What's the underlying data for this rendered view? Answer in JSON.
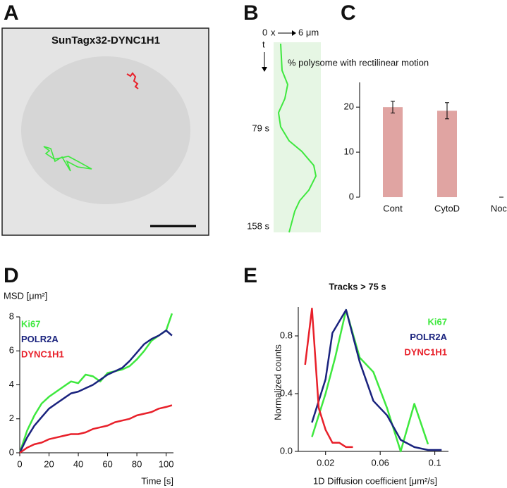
{
  "panels": {
    "A": {
      "letter": "A",
      "title": "SunTagx32-DYNC1H1"
    },
    "B": {
      "letter": "B",
      "x_start": "0",
      "x_axis": "x",
      "x_end": "6 μm",
      "t_axis": "t",
      "t_mid": "79 s",
      "t_end": "158 s"
    }
  },
  "chart_data": [
    {
      "type": "bar",
      "panel": "C",
      "title": "% polysome with rectilinear motion",
      "categories": [
        "Cont",
        "CytoD",
        "Noco"
      ],
      "values": [
        20,
        19.2,
        0
      ],
      "errors": [
        1.3,
        1.8,
        0
      ],
      "color": "#e0a4a2",
      "ylim": [
        0,
        25.5
      ],
      "yticks": [
        0,
        10,
        20
      ]
    },
    {
      "type": "line",
      "panel": "D",
      "y_label": "MSD [μm²]",
      "x_label": "Time [s]",
      "legend": "upper left",
      "x": [
        0,
        5,
        10,
        15,
        20,
        25,
        30,
        35,
        40,
        45,
        50,
        55,
        60,
        65,
        70,
        75,
        80,
        85,
        90,
        95,
        100,
        104
      ],
      "series": [
        {
          "name": "Ki67",
          "color": "#3ee83e",
          "values": [
            0,
            1.3,
            2.2,
            2.9,
            3.3,
            3.6,
            3.9,
            4.2,
            4.1,
            4.6,
            4.5,
            4.2,
            4.7,
            4.8,
            4.9,
            5.1,
            5.5,
            6.0,
            6.6,
            6.9,
            7.2,
            8.2
          ]
        },
        {
          "name": "POLR2A",
          "color": "#1a237e",
          "values": [
            0,
            0.9,
            1.6,
            2.1,
            2.6,
            2.9,
            3.2,
            3.5,
            3.6,
            3.8,
            4.0,
            4.3,
            4.6,
            4.8,
            5.0,
            5.4,
            5.9,
            6.4,
            6.7,
            6.9,
            7.2,
            6.9
          ]
        },
        {
          "name": "DYNC1H1",
          "color": "#e8202a",
          "values": [
            0,
            0.3,
            0.5,
            0.6,
            0.8,
            0.9,
            1.0,
            1.1,
            1.1,
            1.2,
            1.4,
            1.5,
            1.6,
            1.8,
            1.9,
            2.0,
            2.2,
            2.3,
            2.4,
            2.6,
            2.7,
            2.8
          ]
        }
      ],
      "xlim": [
        0,
        105
      ],
      "ylim": [
        0,
        8
      ],
      "xticks": [
        0,
        20,
        40,
        60,
        80,
        100
      ],
      "yticks": [
        0,
        2,
        4,
        6,
        8
      ]
    },
    {
      "type": "line",
      "panel": "E",
      "title": "Tracks > 75 s",
      "y_label": "Normalized counts",
      "x_label": "1D Diffusion coefficient [μm²/s]",
      "legend": "upper right",
      "series": [
        {
          "name": "Ki67",
          "color": "#3ee83e",
          "x": [
            0.01,
            0.02,
            0.027,
            0.035,
            0.045,
            0.055,
            0.065,
            0.075,
            0.085,
            0.095
          ],
          "values": [
            0.1,
            0.4,
            0.65,
            0.98,
            0.65,
            0.55,
            0.3,
            0.0,
            0.33,
            0.05
          ]
        },
        {
          "name": "POLR2A",
          "color": "#1a237e",
          "x": [
            0.01,
            0.02,
            0.025,
            0.035,
            0.045,
            0.055,
            0.065,
            0.075,
            0.085,
            0.095,
            0.105
          ],
          "values": [
            0.2,
            0.5,
            0.82,
            0.98,
            0.62,
            0.35,
            0.25,
            0.08,
            0.03,
            0.01,
            0.01
          ]
        },
        {
          "name": "DYNC1H1",
          "color": "#e8202a",
          "x": [
            0.005,
            0.01,
            0.015,
            0.02,
            0.025,
            0.03,
            0.035,
            0.04
          ],
          "values": [
            0.6,
            0.99,
            0.3,
            0.15,
            0.06,
            0.06,
            0.03,
            0.03
          ]
        }
      ],
      "xlim": [
        0,
        0.11
      ],
      "ylim": [
        0,
        1.0
      ],
      "xticks": [
        0.02,
        0.06,
        0.1
      ],
      "yticks": [
        {
          "value": 0,
          "label": "0.0"
        },
        0.4,
        0.8
      ]
    }
  ]
}
